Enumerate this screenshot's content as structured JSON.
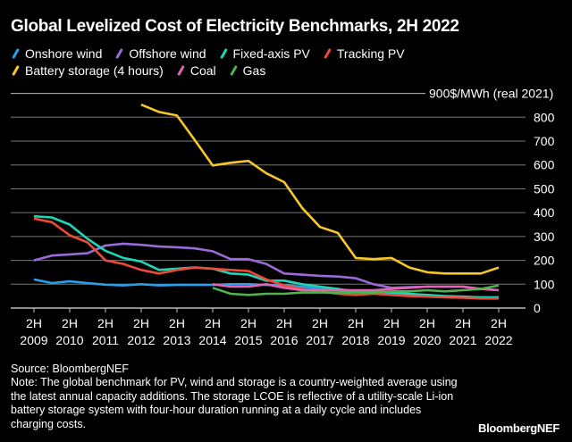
{
  "chart_data": {
    "type": "line",
    "title": "Global Levelized Cost of Electricity Benchmarks, 2H 2022",
    "ylabel": "$/MWh (real 2021)",
    "ylim": [
      0,
      900
    ],
    "yticks": [
      "0",
      "100",
      "200",
      "300",
      "400",
      "500",
      "600",
      "700",
      "800",
      "900"
    ],
    "x": [
      "2H 2009",
      "1H 2010",
      "2H 2010",
      "1H 2011",
      "2H 2011",
      "1H 2012",
      "2H 2012",
      "1H 2013",
      "2H 2013",
      "1H 2014",
      "2H 2014",
      "1H 2015",
      "2H 2015",
      "1H 2016",
      "2H 2016",
      "1H 2017",
      "2H 2017",
      "1H 2018",
      "2H 2018",
      "1H 2019",
      "2H 2019",
      "1H 2020",
      "2H 2020",
      "1H 2021",
      "2H 2021",
      "1H 2022",
      "2H 2022"
    ],
    "xticks": [
      {
        "top": "2H",
        "bottom": "2009"
      },
      {
        "top": "2H",
        "bottom": "2010"
      },
      {
        "top": "2H",
        "bottom": "2011"
      },
      {
        "top": "2H",
        "bottom": "2012"
      },
      {
        "top": "2H",
        "bottom": "2013"
      },
      {
        "top": "2H",
        "bottom": "2014"
      },
      {
        "top": "2H",
        "bottom": "2015"
      },
      {
        "top": "2H",
        "bottom": "2016"
      },
      {
        "top": "2H",
        "bottom": "2017"
      },
      {
        "top": "2H",
        "bottom": "2018"
      },
      {
        "top": "2H",
        "bottom": "2019"
      },
      {
        "top": "2H",
        "bottom": "2020"
      },
      {
        "top": "2H",
        "bottom": "2021"
      },
      {
        "top": "2H",
        "bottom": "2022"
      }
    ],
    "grid": true,
    "legend_position": "top-left",
    "series": [
      {
        "name": "Onshore wind",
        "color": "#2b9fe8",
        "values": [
          120,
          105,
          112,
          105,
          98,
          95,
          100,
          95,
          97,
          97,
          97,
          100,
          100,
          97,
          95,
          90,
          80,
          75,
          70,
          65,
          60,
          55,
          50,
          48,
          45,
          45,
          45
        ]
      },
      {
        "name": "Offshore wind",
        "color": "#9a6ad6",
        "values": [
          200,
          220,
          225,
          230,
          262,
          270,
          265,
          258,
          255,
          250,
          238,
          205,
          205,
          185,
          145,
          140,
          135,
          132,
          125,
          100,
          85,
          88,
          90,
          90,
          90,
          80,
          75
        ]
      },
      {
        "name": "Fixed-axis PV",
        "color": "#1fd6b4",
        "values": [
          385,
          380,
          350,
          290,
          240,
          210,
          195,
          160,
          165,
          170,
          165,
          145,
          140,
          115,
          115,
          100,
          90,
          80,
          70,
          70,
          65,
          60,
          55,
          50,
          48,
          45,
          45
        ]
      },
      {
        "name": "Tracking PV",
        "color": "#ec4a3a",
        "values": [
          375,
          360,
          305,
          275,
          200,
          185,
          160,
          145,
          160,
          170,
          165,
          160,
          155,
          120,
          95,
          80,
          70,
          60,
          55,
          60,
          55,
          50,
          48,
          45,
          43,
          40,
          40
        ]
      },
      {
        "name": "Battery storage (4 hours)",
        "color": "#f8c72b",
        "values": [
          null,
          null,
          null,
          null,
          null,
          null,
          853,
          822,
          807,
          704,
          598,
          609,
          617,
          565,
          528,
          420,
          340,
          315,
          210,
          205,
          210,
          170,
          150,
          145,
          145,
          145,
          170
        ]
      },
      {
        "name": "Coal",
        "color": "#e463b4",
        "values": [
          null,
          null,
          null,
          null,
          null,
          null,
          null,
          null,
          null,
          null,
          100,
          90,
          90,
          100,
          85,
          75,
          75,
          75,
          75,
          75,
          80,
          85,
          90,
          90,
          90,
          80,
          75
        ]
      },
      {
        "name": "Gas",
        "color": "#4fb34e",
        "values": [
          null,
          null,
          null,
          null,
          null,
          null,
          null,
          null,
          null,
          null,
          85,
          60,
          55,
          60,
          60,
          65,
          65,
          65,
          65,
          65,
          70,
          70,
          75,
          70,
          75,
          80,
          95
        ]
      }
    ]
  },
  "legend": {
    "row1": [
      "Onshore wind",
      "Offshore wind",
      "Fixed-axis PV",
      "Tracking PV"
    ],
    "row2": [
      "Battery storage (4 hours)",
      "Coal",
      "Gas"
    ]
  },
  "footer": {
    "source": "Source: BloombergNEF",
    "note": "Note: The global benchmark for PV, wind and storage is a country-weighted average using the latest annual capacity additions. The storage LCOE is reflective of a utility-scale Li-ion battery storage system with four-hour duration running at a daily cycle and includes charging costs."
  },
  "logo": "BloombergNEF"
}
